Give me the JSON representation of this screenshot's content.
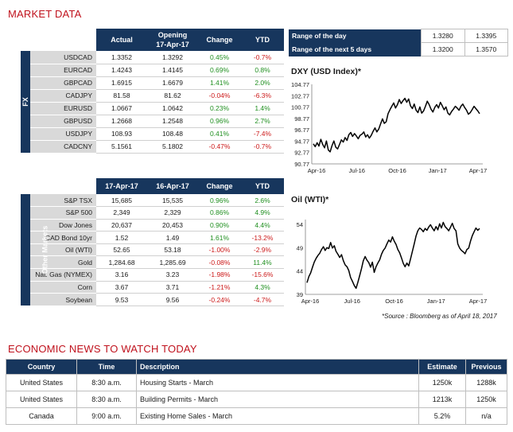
{
  "title": "MARKET DATA",
  "fx": {
    "side_label": "FX",
    "headers": [
      "",
      "Actual",
      "Opening\n17-Apr-17",
      "Change",
      "YTD"
    ],
    "rows": [
      {
        "name": "USDCAD",
        "actual": "1.3352",
        "open": "1.3292",
        "change": "0.45%",
        "ytd": "-0.7%",
        "cs": "pos",
        "ys": "neg"
      },
      {
        "name": "EURCAD",
        "actual": "1.4243",
        "open": "1.4145",
        "change": "0.69%",
        "ytd": "0.8%",
        "cs": "pos",
        "ys": "pos"
      },
      {
        "name": "GBPCAD",
        "actual": "1.6915",
        "open": "1.6679",
        "change": "1.41%",
        "ytd": "2.0%",
        "cs": "pos",
        "ys": "pos"
      },
      {
        "name": "CADJPY",
        "actual": "81.58",
        "open": "81.62",
        "change": "-0.04%",
        "ytd": "-6.3%",
        "cs": "neg",
        "ys": "neg"
      },
      {
        "name": "EURUSD",
        "actual": "1.0667",
        "open": "1.0642",
        "change": "0.23%",
        "ytd": "1.4%",
        "cs": "pos",
        "ys": "pos"
      },
      {
        "name": "GBPUSD",
        "actual": "1.2668",
        "open": "1.2548",
        "change": "0.96%",
        "ytd": "2.7%",
        "cs": "pos",
        "ys": "pos"
      },
      {
        "name": "USDJPY",
        "actual": "108.93",
        "open": "108.48",
        "change": "0.41%",
        "ytd": "-7.4%",
        "cs": "pos",
        "ys": "neg"
      },
      {
        "name": "CADCNY",
        "actual": "5.1561",
        "open": "5.1802",
        "change": "-0.47%",
        "ytd": "-0.7%",
        "cs": "neg",
        "ys": "neg"
      }
    ]
  },
  "other": {
    "side_label": "Other Markets",
    "headers": [
      "",
      "17-Apr-17",
      "16-Apr-17",
      "Change",
      "YTD"
    ],
    "rows": [
      {
        "name": "S&P TSX",
        "actual": "15,685",
        "open": "15,535",
        "change": "0.96%",
        "ytd": "2.6%",
        "cs": "pos",
        "ys": "pos"
      },
      {
        "name": "S&P 500",
        "actual": "2,349",
        "open": "2,329",
        "change": "0.86%",
        "ytd": "4.9%",
        "cs": "pos",
        "ys": "pos"
      },
      {
        "name": "Dow Jones",
        "actual": "20,637",
        "open": "20,453",
        "change": "0.90%",
        "ytd": "4.4%",
        "cs": "pos",
        "ys": "pos"
      },
      {
        "name": "CAD Bond 10yr",
        "actual": "1.52",
        "open": "1.49",
        "change": "1.61%",
        "ytd": "-13.2%",
        "cs": "pos",
        "ys": "neg"
      },
      {
        "name": "Oil (WTI)",
        "actual": "52.65",
        "open": "53.18",
        "change": "-1.00%",
        "ytd": "-2.9%",
        "cs": "neg",
        "ys": "neg"
      },
      {
        "name": "Gold",
        "actual": "1,284.68",
        "open": "1,285.69",
        "change": "-0.08%",
        "ytd": "11.4%",
        "cs": "neg",
        "ys": "pos"
      },
      {
        "name": "Nat. Gas (NYMEX)",
        "actual": "3.16",
        "open": "3.23",
        "change": "-1.98%",
        "ytd": "-15.6%",
        "cs": "neg",
        "ys": "neg"
      },
      {
        "name": "Corn",
        "actual": "3.67",
        "open": "3.71",
        "change": "-1.21%",
        "ytd": "4.3%",
        "cs": "neg",
        "ys": "pos"
      },
      {
        "name": "Soybean",
        "actual": "9.53",
        "open": "9.56",
        "change": "-0.24%",
        "ytd": "-4.7%",
        "cs": "neg",
        "ys": "neg"
      }
    ]
  },
  "range": {
    "rows": [
      {
        "label": "Range of the day",
        "low": "1.3280",
        "high": "1.3395"
      },
      {
        "label": "Range of the next 5 days",
        "low": "1.3200",
        "high": "1.3570"
      }
    ]
  },
  "chart_data": [
    {
      "type": "line",
      "title": "DXY (USD Index)*",
      "x_labels": [
        "Apr-16",
        "Jul-16",
        "Oct-16",
        "Jan-17",
        "Apr-17"
      ],
      "y_ticks": [
        "104.77",
        "102.77",
        "100.77",
        "98.77",
        "96.77",
        "94.77",
        "92.77",
        "90.77"
      ],
      "ylim": [
        90.77,
        104.77
      ],
      "values": [
        94.3,
        93.8,
        94.5,
        93.9,
        95.1,
        94.2,
        93.6,
        94.8,
        93.2,
        92.9,
        94.0,
        94.8,
        93.7,
        93.4,
        94.2,
        95.0,
        94.6,
        95.4,
        94.9,
        95.9,
        96.3,
        95.6,
        96.1,
        95.7,
        95.2,
        95.8,
        96.0,
        96.4,
        95.5,
        95.9,
        95.3,
        95.8,
        96.5,
        97.1,
        96.4,
        96.9,
        97.8,
        98.7,
        97.9,
        98.2,
        99.6,
        100.3,
        100.9,
        101.5,
        100.6,
        101.2,
        102.1,
        101.4,
        101.9,
        102.3,
        101.6,
        102.2,
        101.0,
        100.5,
        101.3,
        100.2,
        99.8,
        100.8,
        99.7,
        100.1,
        100.9,
        101.8,
        101.2,
        100.4,
        99.9,
        100.7,
        101.2,
        100.6,
        101.6,
        101.0,
        100.3,
        100.8,
        99.7,
        99.4,
        100.0,
        100.4,
        100.9,
        100.6,
        100.2,
        100.9,
        101.3,
        100.7,
        100.2,
        99.5,
        99.8,
        100.3,
        100.9,
        100.5,
        100.1,
        99.6
      ]
    },
    {
      "type": "line",
      "title": "Oil (WTI)*",
      "x_labels": [
        "Apr-16",
        "Jul-16",
        "Oct-16",
        "Jan-17",
        "Apr-17"
      ],
      "y_ticks": [
        "54",
        "49",
        "44",
        "39"
      ],
      "ylim": [
        39,
        55
      ],
      "values": [
        41.5,
        42.8,
        43.6,
        44.8,
        45.9,
        46.7,
        47.3,
        47.8,
        48.6,
        49.2,
        48.4,
        49.0,
        48.8,
        50.1,
        48.9,
        49.4,
        48.2,
        47.6,
        46.9,
        47.5,
        46.2,
        45.3,
        44.9,
        44.1,
        42.6,
        41.8,
        40.9,
        40.3,
        41.6,
        43.0,
        44.5,
        46.2,
        47.1,
        46.3,
        45.8,
        44.8,
        45.9,
        43.7,
        44.9,
        45.7,
        46.4,
        47.6,
        48.4,
        48.9,
        49.8,
        50.6,
        50.2,
        51.3,
        50.4,
        49.7,
        48.6,
        47.9,
        46.8,
        45.6,
        44.9,
        45.7,
        45.1,
        46.6,
        48.2,
        49.8,
        51.5,
        52.6,
        53.2,
        52.9,
        52.4,
        53.1,
        52.7,
        53.4,
        53.9,
        53.2,
        52.6,
        53.5,
        52.8,
        54.1,
        53.2,
        54.4,
        53.5,
        53.1,
        52.6,
        53.4,
        54.2,
        53.1,
        52.6,
        49.8,
        48.9,
        48.4,
        48.1,
        47.7,
        48.6,
        48.9,
        50.4,
        51.6,
        52.4,
        53.2,
        52.7,
        53.1
      ]
    }
  ],
  "source_note": "*Source : Bloomberg as of  April 18, 2017",
  "news": {
    "title": "ECONOMIC NEWS TO WATCH TODAY",
    "headers": {
      "country": "Country",
      "time": "Time",
      "desc": "Description",
      "est": "Estimate",
      "prev": "Previous"
    },
    "rows": [
      {
        "country": "United States",
        "time": "8:30 a.m.",
        "desc": "Housing Starts - March",
        "est": "1250k",
        "prev": "1288k"
      },
      {
        "country": "United States",
        "time": "8:30 a.m.",
        "desc": "Building Permits - March",
        "est": "1213k",
        "prev": "1250k"
      },
      {
        "country": "Canada",
        "time": "9:00 a.m.",
        "desc": "Existing Home Sales - March",
        "est": "5.2%",
        "prev": "n/a"
      }
    ]
  }
}
